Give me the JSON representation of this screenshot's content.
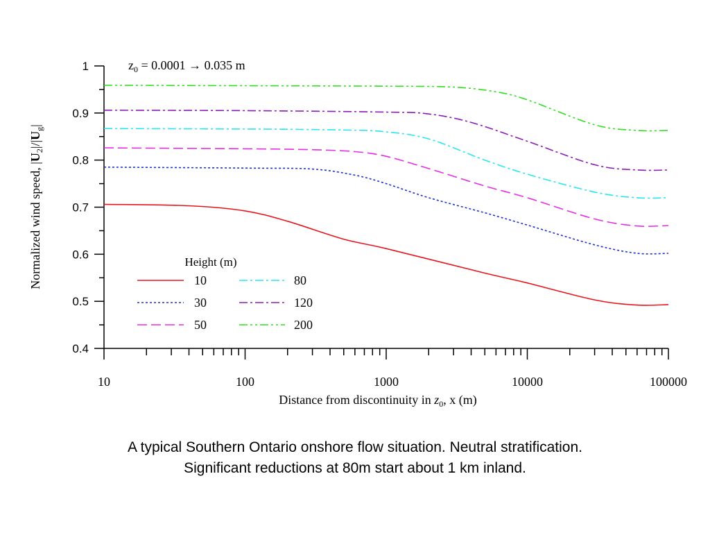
{
  "chart_data": {
    "type": "line",
    "annotation": {
      "prefix": "z",
      "sub": "0",
      "text": " = 0.0001  →  0.035 m"
    },
    "xlabel": {
      "text": "Distance from discontinuity in ",
      "var": "z",
      "sub": "0",
      "suffix": ",  x (m)"
    },
    "ylabel": {
      "p1": "Normalized wind speed, |",
      "b1": "U",
      "s1": "2",
      "p2": "|/|",
      "b2": "U",
      "s2": "g",
      "p3": "|"
    },
    "x_scale": "log",
    "xlim": [
      10,
      100000
    ],
    "ylim": [
      0.4,
      1.0
    ],
    "x_ticks": [
      10,
      100,
      1000,
      10000,
      100000
    ],
    "x_tick_labels": [
      "10",
      "100",
      "1000",
      "10000",
      "100000"
    ],
    "y_ticks": [
      0.4,
      0.5,
      0.6,
      0.7,
      0.8,
      0.9,
      1.0
    ],
    "y_tick_labels": [
      "0.4",
      "0.5",
      "0.6",
      "0.7",
      "0.8",
      "0.9",
      "1"
    ],
    "legend": {
      "title": "Height (m)",
      "placement": "lower-left"
    },
    "series": [
      {
        "name": "10",
        "color": "#e8141c",
        "dash": "solid",
        "x": [
          10,
          40,
          100,
          200,
          500,
          1000,
          5000,
          10000,
          30000,
          60000,
          100000
        ],
        "y": [
          0.706,
          0.703,
          0.692,
          0.67,
          0.632,
          0.612,
          0.56,
          0.539,
          0.503,
          0.492,
          0.493
        ]
      },
      {
        "name": "30",
        "color": "#1b2fd6",
        "dash": "dotted",
        "x": [
          10,
          100,
          300,
          600,
          1000,
          2000,
          5000,
          10000,
          30000,
          60000,
          100000
        ],
        "y": [
          0.785,
          0.783,
          0.781,
          0.768,
          0.75,
          0.72,
          0.688,
          0.662,
          0.62,
          0.602,
          0.602
        ]
      },
      {
        "name": "50",
        "color": "#e62ce6",
        "dash": "dashed",
        "x": [
          10,
          100,
          300,
          600,
          1000,
          2000,
          5000,
          10000,
          30000,
          60000,
          100000
        ],
        "y": [
          0.826,
          0.824,
          0.822,
          0.818,
          0.808,
          0.782,
          0.745,
          0.72,
          0.675,
          0.66,
          0.661
        ]
      },
      {
        "name": "80",
        "color": "#27e6f0",
        "dash": "dashdot",
        "x": [
          10,
          100,
          500,
          1000,
          2000,
          5000,
          10000,
          30000,
          60000,
          100000
        ],
        "y": [
          0.867,
          0.866,
          0.864,
          0.86,
          0.845,
          0.8,
          0.77,
          0.732,
          0.72,
          0.72
        ]
      },
      {
        "name": "120",
        "color": "#8c1ab8",
        "dash": "dashdot",
        "x": [
          10,
          100,
          1000,
          2000,
          4000,
          10000,
          30000,
          60000,
          100000
        ],
        "y": [
          0.906,
          0.905,
          0.902,
          0.898,
          0.88,
          0.84,
          0.79,
          0.779,
          0.779
        ]
      },
      {
        "name": "200",
        "color": "#2ee01e",
        "dash": "dashdotdot",
        "x": [
          10,
          100,
          1000,
          3000,
          6000,
          10000,
          30000,
          60000,
          100000
        ],
        "y": [
          0.959,
          0.958,
          0.957,
          0.955,
          0.945,
          0.928,
          0.875,
          0.863,
          0.863
        ]
      }
    ]
  },
  "caption": {
    "line1": "A typical Southern Ontario onshore flow situation. Neutral stratification.",
    "line2": "Significant reductions at 80m start about 1 km inland."
  }
}
